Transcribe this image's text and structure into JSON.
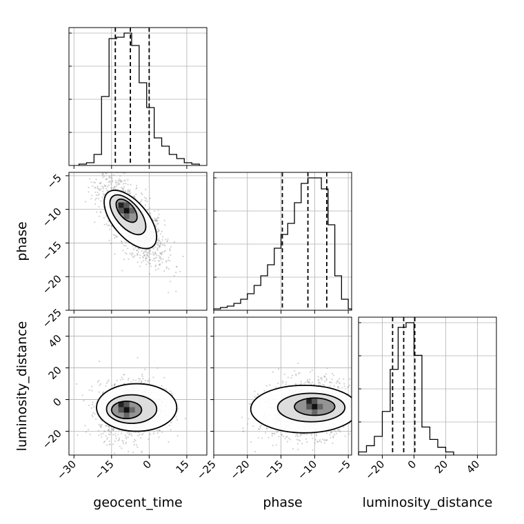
{
  "chart_data": {
    "type": "scatter",
    "title": "",
    "parameters": [
      "geocent_time",
      "phase",
      "luminosity_distance"
    ],
    "ranges": {
      "geocent_time": [
        -32,
        23
      ],
      "phase": [
        -25,
        -4.5
      ],
      "luminosity_distance": [
        -35,
        52
      ]
    },
    "ticks": {
      "geocent_time": [
        -30,
        -15,
        0,
        15
      ],
      "phase": [
        -25,
        -20,
        -15,
        -10,
        -5
      ],
      "luminosity_distance": [
        -20,
        0,
        20,
        40
      ]
    },
    "tick_labels": {
      "geocent_time": [
        "−30",
        "−15",
        "0",
        "15"
      ],
      "phase": [
        "−25",
        "−20",
        "−15",
        "−10",
        "−5"
      ],
      "luminosity_distance": [
        "−20",
        "0",
        "20",
        "40"
      ]
    },
    "quantiles": {
      "geocent_time": [
        -13.5,
        -7.5,
        0
      ],
      "phase": [
        -14.8,
        -11.0,
        -8.2
      ],
      "luminosity_distance": [
        -13.5,
        -6.5,
        0.5
      ]
    },
    "histograms": {
      "geocent_time": {
        "edges": [
          -28,
          -25,
          -22,
          -19,
          -16,
          -13,
          -10,
          -7,
          -4,
          -1,
          2,
          5,
          8,
          11,
          14,
          17,
          20
        ],
        "counts": [
          1,
          2,
          8,
          50,
          92,
          93,
          96,
          87,
          60,
          42,
          20,
          14,
          8,
          5,
          2,
          1
        ]
      },
      "phase": {
        "edges": [
          -25,
          -24,
          -23,
          -22,
          -21,
          -20,
          -19,
          -18,
          -17,
          -16,
          -15,
          -14,
          -13,
          -12,
          -11,
          -10,
          -9,
          -8,
          -7,
          -6,
          -5,
          -4.5
        ],
        "counts": [
          1,
          2,
          3,
          5,
          8,
          12,
          18,
          25,
          33,
          45,
          55,
          63,
          78,
          92,
          96,
          96,
          88,
          62,
          25,
          8,
          1
        ]
      },
      "luminosity_distance": {
        "edges": [
          -35,
          -30,
          -25,
          -20,
          -15,
          -10,
          -5,
          0,
          5,
          10,
          15,
          20,
          25
        ],
        "counts": [
          2,
          6,
          12,
          28,
          55,
          82,
          85,
          64,
          18,
          10,
          5,
          2
        ]
      }
    },
    "grid": true
  }
}
